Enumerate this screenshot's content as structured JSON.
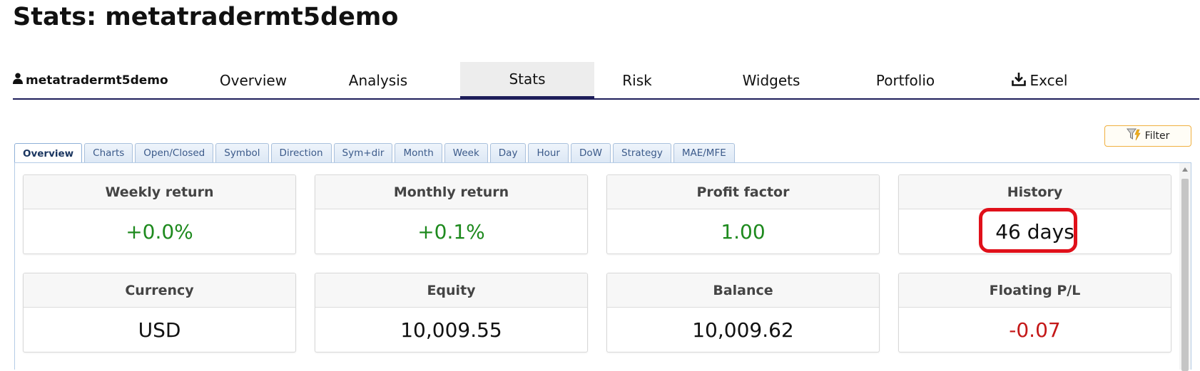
{
  "page_title": "Stats: metatradermt5demo",
  "nav": {
    "user": "metatradermt5demo",
    "tabs": [
      {
        "label": "Overview"
      },
      {
        "label": "Analysis"
      },
      {
        "label": "Stats"
      },
      {
        "label": "Risk"
      },
      {
        "label": "Widgets"
      },
      {
        "label": "Portfolio"
      },
      {
        "label": "Excel"
      }
    ],
    "active_tab": "Stats"
  },
  "filter_button": {
    "label": "Filter"
  },
  "subtabs": [
    {
      "label": "Overview"
    },
    {
      "label": "Charts"
    },
    {
      "label": "Open/Closed"
    },
    {
      "label": "Symbol"
    },
    {
      "label": "Direction"
    },
    {
      "label": "Sym+dir"
    },
    {
      "label": "Month"
    },
    {
      "label": "Week"
    },
    {
      "label": "Day"
    },
    {
      "label": "Hour"
    },
    {
      "label": "DoW"
    },
    {
      "label": "Strategy"
    },
    {
      "label": "MAE/MFE"
    }
  ],
  "active_subtab": "Overview",
  "cards": [
    {
      "title": "Weekly return",
      "value": "+0.0%",
      "status": "positive"
    },
    {
      "title": "Monthly return",
      "value": "+0.1%",
      "status": "positive"
    },
    {
      "title": "Profit factor",
      "value": "1.00",
      "status": "positive"
    },
    {
      "title": "History",
      "value": "46 days",
      "status": "neutral"
    },
    {
      "title": "Currency",
      "value": "USD",
      "status": "neutral"
    },
    {
      "title": "Equity",
      "value": "10,009.55",
      "status": "neutral"
    },
    {
      "title": "Balance",
      "value": "10,009.62",
      "status": "neutral"
    },
    {
      "title": "Floating P/L",
      "value": "-0.07",
      "status": "negative"
    }
  ],
  "colors": {
    "positive": "#1e8a1e",
    "negative": "#c41818",
    "nav_underline": "#1e1e5a",
    "highlight": "#e0101a"
  }
}
